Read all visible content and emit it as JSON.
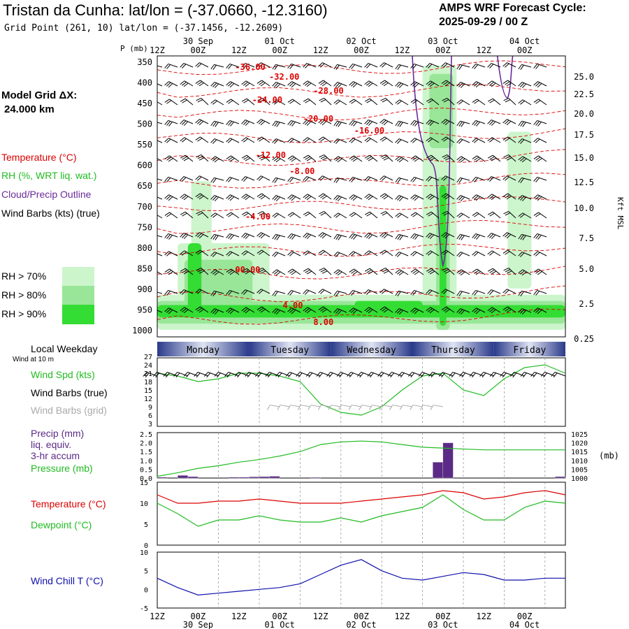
{
  "header": {
    "title": "Tristan da Cunha:  lat/lon = (-37.0660, -12.3160)",
    "subtitle": "Grid Point (261, 10) lat/lon = (-37.1456, -12.2609)",
    "cycle_line1": "AMPS WRF Forecast Cycle:",
    "cycle_line2": "2025-09-29 / 00  Z"
  },
  "sidebar": {
    "model_grid_line1": "Model Grid ΔX:",
    "model_grid_line2": "24.000 km",
    "legend_temperature": "Temperature (°C)",
    "legend_rh": "RH (%, WRT liq. wat.)",
    "legend_cloud": "Cloud/Precip Outline",
    "legend_wind": "Wind Barbs (kts) (true)",
    "rh_levels": [
      "RH > 70%",
      "RH > 80%",
      "RH > 90%"
    ],
    "rh_colors": [
      "#ccf5cc",
      "#99e699",
      "#33dd33"
    ],
    "local_weekday": "Local Weekday",
    "wind_at_10m": "Wind at 10 m",
    "wind_spd": "Wind Spd (kts)",
    "wind_barbs_true": "Wind Barbs (true)",
    "wind_barbs_grid": "Wind Barbs (grid)",
    "precip_l1": "Precip (mm)",
    "precip_l2": "liq. equiv.",
    "precip_l3": "3-hr accum",
    "pressure": "Pressure (mb)",
    "temperature": "Temperature (°C)",
    "dewpoint": "Dewpoint (°C)",
    "wind_chill": "Wind Chill T (°C)"
  },
  "colors": {
    "temperature": "#dd0000",
    "green": "#22bb22",
    "cloud": "#6a2a9a",
    "precip": "#5b2a86",
    "wind_chill": "#1010aa",
    "grid_barbs": "#aaaaaa"
  },
  "chart_data": [
    {
      "type": "heatmap",
      "name": "cross-section",
      "p_label": "P (mb)",
      "right_axis_label": "Kft MSL",
      "time_ticks_top": [
        "12Z",
        "00Z",
        "12Z",
        "00Z",
        "12Z",
        "00Z",
        "12Z",
        "00Z",
        "12Z",
        "00Z"
      ],
      "date_ticks_top": [
        "30 Sep",
        "01 Oct",
        "02 Oct",
        "03 Oct",
        "04 Oct"
      ],
      "pressure_levels": [
        350,
        400,
        450,
        500,
        550,
        600,
        650,
        700,
        750,
        800,
        850,
        900,
        950,
        1000
      ],
      "height_kft": [
        "25.0",
        "22.5",
        "20.0",
        "17.5",
        "15.0",
        "12.5",
        "10.0",
        "7.5",
        "5.0",
        "2.5",
        "0.25"
      ],
      "temperature_labels": [
        "-36.00",
        "-32.00",
        "-28.00",
        "-24.00",
        "-20.00",
        "-16.00",
        "-12.00",
        "-8.00",
        "-4.00",
        "00.00",
        "4.00",
        "8.00"
      ]
    },
    {
      "type": "line",
      "name": "surface-wind",
      "weekdays": [
        "Monday",
        "Tuesday",
        "Wednesday",
        "Thursday",
        "Friday"
      ],
      "yticks": [
        "27",
        "24",
        "21",
        "18",
        "15",
        "12",
        "9",
        "6",
        "3"
      ],
      "ylim": [
        3,
        27
      ],
      "x_hours": [
        0,
        6,
        12,
        18,
        24,
        30,
        36,
        42,
        48,
        54,
        60,
        66,
        72,
        78,
        84,
        90,
        96,
        102,
        108,
        114,
        120
      ],
      "series": [
        {
          "name": "Wind Spd (kts)",
          "values": [
            21,
            20,
            18,
            19,
            21,
            21,
            20,
            18,
            10,
            7,
            6,
            9,
            15,
            20,
            21,
            15,
            13,
            19,
            23,
            24,
            21
          ]
        }
      ]
    },
    {
      "type": "bar",
      "name": "precip-pressure",
      "precip_yticks": [
        "2.5",
        "2.0",
        "1.5",
        "1.0",
        "0.5",
        "0.0"
      ],
      "pressure_yticks": [
        "1025",
        "1020",
        "1015",
        "1010",
        "1005",
        "1000"
      ],
      "pressure_unit": "(mb)",
      "precip_ylim": [
        0,
        2.5
      ],
      "pressure_ylim": [
        1000,
        1025
      ],
      "precip_bars": [
        {
          "hour": 1.5,
          "value": 0.05
        },
        {
          "hour": 7.5,
          "value": 0.15
        },
        {
          "hour": 10.5,
          "value": 0.08
        },
        {
          "hour": 22.5,
          "value": 0.05
        },
        {
          "hour": 25.5,
          "value": 0.05
        },
        {
          "hour": 28.5,
          "value": 0.07
        },
        {
          "hour": 31.5,
          "value": 0.08
        },
        {
          "hour": 34.5,
          "value": 0.1
        },
        {
          "hour": 46.5,
          "value": 0.04
        },
        {
          "hour": 82.5,
          "value": 0.9
        },
        {
          "hour": 85.5,
          "value": 2.0
        },
        {
          "hour": 118.5,
          "value": 0.08
        }
      ],
      "pressure": {
        "x_hours": [
          0,
          6,
          12,
          18,
          24,
          30,
          36,
          42,
          48,
          54,
          60,
          66,
          72,
          78,
          84,
          90,
          96,
          102,
          108,
          114,
          120
        ],
        "values": [
          1001,
          1003,
          1005.5,
          1007,
          1009,
          1010.5,
          1012.5,
          1015,
          1019,
          1020.5,
          1021,
          1020.5,
          1019,
          1017.5,
          1017,
          1016.5,
          1016,
          1016,
          1016,
          1016,
          1016
        ]
      }
    },
    {
      "type": "line",
      "name": "temperature-dewpoint",
      "yticks": [
        "15",
        "10",
        "5",
        "0"
      ],
      "ylim": [
        0,
        15
      ],
      "x_hours": [
        0,
        6,
        12,
        18,
        24,
        30,
        36,
        42,
        48,
        54,
        60,
        66,
        72,
        78,
        84,
        90,
        96,
        102,
        108,
        114,
        120
      ],
      "series": [
        {
          "name": "Temperature (°C)",
          "values": [
            12,
            10,
            10,
            10.5,
            10.5,
            11,
            10.5,
            10,
            10,
            10,
            10.5,
            11,
            11.5,
            12,
            13,
            12.5,
            11,
            11.5,
            12.5,
            13,
            12
          ]
        },
        {
          "name": "Dewpoint (°C)",
          "values": [
            10,
            7.5,
            4.5,
            6,
            6,
            7,
            6,
            5.5,
            5.5,
            6.5,
            5.5,
            7,
            8,
            9,
            12,
            8.5,
            6,
            6,
            9,
            10.5,
            10
          ]
        }
      ]
    },
    {
      "type": "line",
      "name": "wind-chill",
      "yticks": [
        "10",
        "5",
        "0",
        "-5"
      ],
      "ylim": [
        -5,
        10
      ],
      "x_hours": [
        0,
        6,
        12,
        18,
        24,
        30,
        36,
        42,
        48,
        54,
        60,
        66,
        72,
        78,
        84,
        90,
        96,
        102,
        108,
        114,
        120
      ],
      "series": [
        {
          "name": "Wind Chill T (°C)",
          "values": [
            3,
            0.5,
            -1.5,
            -1,
            -0.5,
            0,
            0.5,
            1.5,
            4,
            6.5,
            8,
            5,
            3,
            2.5,
            3.5,
            4.5,
            4,
            2.5,
            2.5,
            3,
            3
          ]
        }
      ]
    }
  ]
}
